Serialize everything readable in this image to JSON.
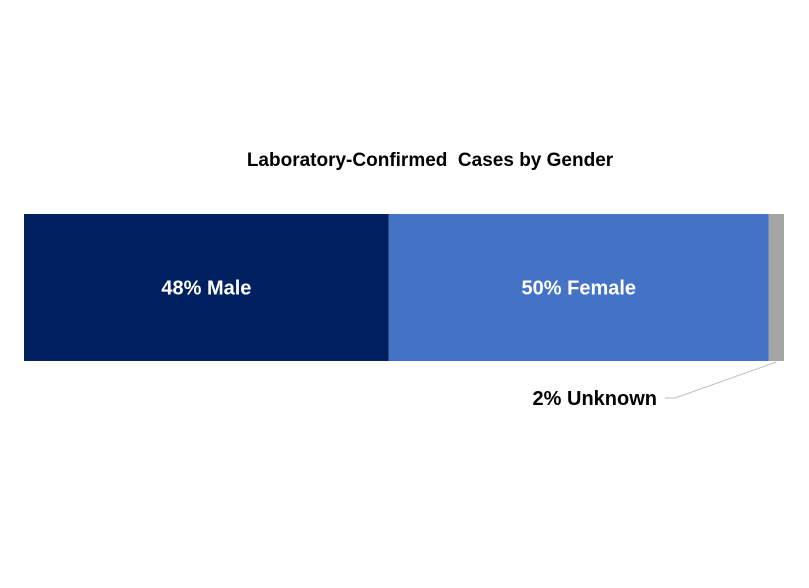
{
  "chart_data": {
    "type": "bar",
    "orientation": "horizontal",
    "stacked": true,
    "title": "Laboratory-Confirmed  Cases by Gender",
    "categories": [
      "Gender"
    ],
    "series": [
      {
        "name": "Male",
        "values": [
          48
        ],
        "label": "48% Male",
        "color": "#002060",
        "label_color": "#FFFFFF",
        "label_position": "inside"
      },
      {
        "name": "Female",
        "values": [
          50
        ],
        "label": "50% Female",
        "color": "#4472C4",
        "label_color": "#FFFFFF",
        "label_position": "inside"
      },
      {
        "name": "Unknown",
        "values": [
          2
        ],
        "label": "2% Unknown",
        "color": "#A5A5A5",
        "label_color": "#000000",
        "label_position": "callout-below"
      }
    ],
    "unit": "%",
    "xlim": [
      0,
      100
    ],
    "grid": false,
    "legend": "none",
    "leader_line_color": "#BFBFBF"
  }
}
